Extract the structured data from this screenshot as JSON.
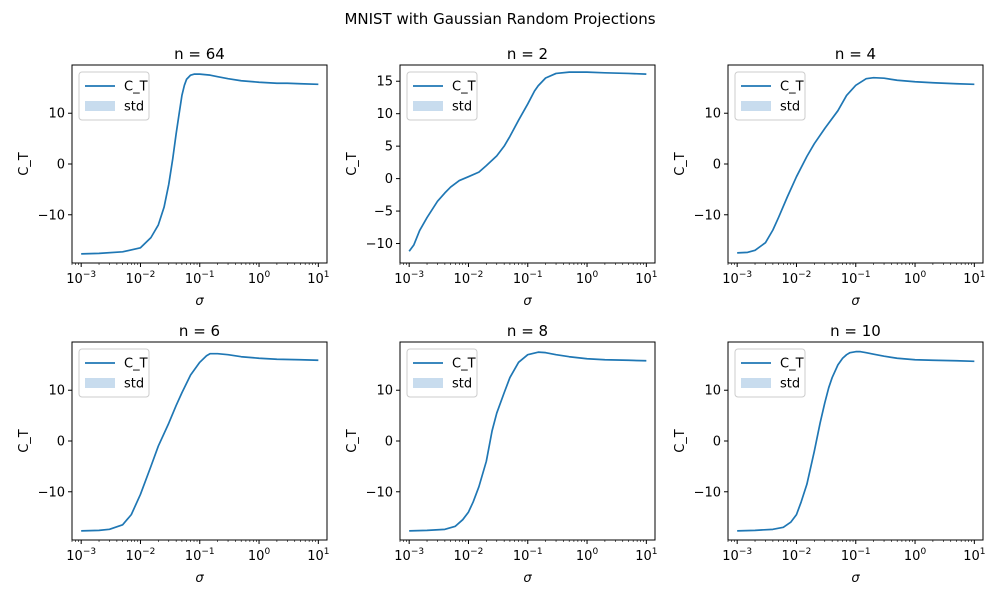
{
  "figure": {
    "suptitle": "MNIST with Gaussian Random Projections"
  },
  "colors": {
    "line": "#1f77b4",
    "std_fill": "#c8dcee"
  },
  "chart_data": [
    {
      "type": "line",
      "title": "n = 64",
      "xlabel": "σ",
      "ylabel": "C_T",
      "xscale": "log",
      "xlim": [
        0.0007,
        14
      ],
      "ylim": [
        -19.5,
        19.5
      ],
      "xticks": [
        {
          "value": 0.001,
          "label": "10",
          "exp": "−3"
        },
        {
          "value": 0.01,
          "label": "10",
          "exp": "−2"
        },
        {
          "value": 0.1,
          "label": "10",
          "exp": "−1"
        },
        {
          "value": 1,
          "label": "10",
          "exp": "0"
        },
        {
          "value": 10,
          "label": "10",
          "exp": "1"
        }
      ],
      "yticks": [
        {
          "value": -10,
          "label": "−10"
        },
        {
          "value": 0,
          "label": "0"
        },
        {
          "value": 10,
          "label": "10"
        }
      ],
      "legend": {
        "position": "upper-left",
        "entries": [
          "C_T",
          "std"
        ]
      },
      "series": [
        {
          "name": "C_T",
          "x": [
            0.001,
            0.002,
            0.005,
            0.01,
            0.015,
            0.02,
            0.025,
            0.03,
            0.035,
            0.04,
            0.045,
            0.05,
            0.055,
            0.06,
            0.07,
            0.08,
            0.1,
            0.15,
            0.2,
            0.3,
            0.5,
            1,
            2,
            3,
            5,
            10
          ],
          "y": [
            -17.7,
            -17.6,
            -17.3,
            -16.5,
            -14.5,
            -12.0,
            -8.5,
            -4.0,
            1.0,
            6.0,
            10.0,
            13.5,
            15.5,
            16.7,
            17.5,
            17.7,
            17.7,
            17.5,
            17.2,
            16.8,
            16.4,
            16.1,
            15.9,
            15.9,
            15.8,
            15.7
          ]
        }
      ]
    },
    {
      "type": "line",
      "title": "n = 2",
      "xlabel": "σ",
      "ylabel": "C_T",
      "xscale": "log",
      "xlim": [
        0.0007,
        14
      ],
      "ylim": [
        -13.0,
        17.5
      ],
      "xticks": [
        {
          "value": 0.001,
          "label": "10",
          "exp": "−3"
        },
        {
          "value": 0.01,
          "label": "10",
          "exp": "−2"
        },
        {
          "value": 0.1,
          "label": "10",
          "exp": "−1"
        },
        {
          "value": 1,
          "label": "10",
          "exp": "0"
        },
        {
          "value": 10,
          "label": "10",
          "exp": "1"
        }
      ],
      "yticks": [
        {
          "value": -10,
          "label": "−10"
        },
        {
          "value": -5,
          "label": "−5"
        },
        {
          "value": 0,
          "label": "0"
        },
        {
          "value": 5,
          "label": "5"
        },
        {
          "value": 10,
          "label": "10"
        },
        {
          "value": 15,
          "label": "15"
        }
      ],
      "legend": {
        "position": "upper-left",
        "entries": [
          "C_T",
          "std"
        ]
      },
      "series": [
        {
          "name": "C_T",
          "x": [
            0.001,
            0.0012,
            0.0015,
            0.002,
            0.003,
            0.004,
            0.005,
            0.007,
            0.01,
            0.015,
            0.02,
            0.03,
            0.04,
            0.05,
            0.07,
            0.1,
            0.13,
            0.15,
            0.2,
            0.3,
            0.5,
            0.7,
            1,
            2,
            5,
            10
          ],
          "y": [
            -11.2,
            -10.2,
            -8.0,
            -6.0,
            -3.5,
            -2.2,
            -1.3,
            -0.3,
            0.3,
            1.0,
            2.0,
            3.5,
            5.0,
            6.5,
            9.0,
            11.5,
            13.5,
            14.3,
            15.5,
            16.2,
            16.4,
            16.4,
            16.4,
            16.3,
            16.2,
            16.1
          ]
        }
      ]
    },
    {
      "type": "line",
      "title": "n = 4",
      "xlabel": "σ",
      "ylabel": "C_T",
      "xscale": "log",
      "xlim": [
        0.0007,
        14
      ],
      "ylim": [
        -19.5,
        19.5
      ],
      "xticks": [
        {
          "value": 0.001,
          "label": "10",
          "exp": "−3"
        },
        {
          "value": 0.01,
          "label": "10",
          "exp": "−2"
        },
        {
          "value": 0.1,
          "label": "10",
          "exp": "−1"
        },
        {
          "value": 1,
          "label": "10",
          "exp": "0"
        },
        {
          "value": 10,
          "label": "10",
          "exp": "1"
        }
      ],
      "yticks": [
        {
          "value": -10,
          "label": "−10"
        },
        {
          "value": 0,
          "label": "0"
        },
        {
          "value": 10,
          "label": "10"
        }
      ],
      "legend": {
        "position": "upper-left",
        "entries": [
          "C_T",
          "std"
        ]
      },
      "series": [
        {
          "name": "C_T",
          "x": [
            0.001,
            0.0015,
            0.002,
            0.003,
            0.004,
            0.005,
            0.007,
            0.01,
            0.015,
            0.02,
            0.03,
            0.05,
            0.07,
            0.1,
            0.15,
            0.2,
            0.3,
            0.5,
            1,
            2,
            5,
            10
          ],
          "y": [
            -17.5,
            -17.4,
            -17.0,
            -15.5,
            -13.0,
            -10.5,
            -6.5,
            -2.5,
            1.5,
            4.0,
            7.0,
            10.5,
            13.5,
            15.5,
            16.8,
            17.0,
            16.9,
            16.5,
            16.2,
            16.0,
            15.8,
            15.7
          ]
        }
      ]
    },
    {
      "type": "line",
      "title": "n = 6",
      "xlabel": "σ",
      "ylabel": "C_T",
      "xscale": "log",
      "xlim": [
        0.0007,
        14
      ],
      "ylim": [
        -19.5,
        19.5
      ],
      "xticks": [
        {
          "value": 0.001,
          "label": "10",
          "exp": "−3"
        },
        {
          "value": 0.01,
          "label": "10",
          "exp": "−2"
        },
        {
          "value": 0.1,
          "label": "10",
          "exp": "−1"
        },
        {
          "value": 1,
          "label": "10",
          "exp": "0"
        },
        {
          "value": 10,
          "label": "10",
          "exp": "1"
        }
      ],
      "yticks": [
        {
          "value": -10,
          "label": "−10"
        },
        {
          "value": 0,
          "label": "0"
        },
        {
          "value": 10,
          "label": "10"
        }
      ],
      "legend": {
        "position": "upper-left",
        "entries": [
          "C_T",
          "std"
        ]
      },
      "series": [
        {
          "name": "C_T",
          "x": [
            0.001,
            0.002,
            0.003,
            0.005,
            0.007,
            0.01,
            0.015,
            0.02,
            0.03,
            0.04,
            0.05,
            0.07,
            0.1,
            0.13,
            0.15,
            0.2,
            0.3,
            0.5,
            1,
            2,
            5,
            10
          ],
          "y": [
            -17.7,
            -17.6,
            -17.4,
            -16.5,
            -14.5,
            -10.5,
            -5.0,
            -1.0,
            3.5,
            7.0,
            9.5,
            13.0,
            15.5,
            16.8,
            17.2,
            17.2,
            17.0,
            16.6,
            16.3,
            16.1,
            16.0,
            15.9
          ]
        }
      ]
    },
    {
      "type": "line",
      "title": "n = 8",
      "xlabel": "σ",
      "ylabel": "C_T",
      "xscale": "log",
      "xlim": [
        0.0007,
        14
      ],
      "ylim": [
        -19.5,
        19.5
      ],
      "xticks": [
        {
          "value": 0.001,
          "label": "10",
          "exp": "−3"
        },
        {
          "value": 0.01,
          "label": "10",
          "exp": "−2"
        },
        {
          "value": 0.1,
          "label": "10",
          "exp": "−1"
        },
        {
          "value": 1,
          "label": "10",
          "exp": "0"
        },
        {
          "value": 10,
          "label": "10",
          "exp": "1"
        }
      ],
      "yticks": [
        {
          "value": -10,
          "label": "−10"
        },
        {
          "value": 0,
          "label": "0"
        },
        {
          "value": 10,
          "label": "10"
        }
      ],
      "legend": {
        "position": "upper-left",
        "entries": [
          "C_T",
          "std"
        ]
      },
      "series": [
        {
          "name": "C_T",
          "x": [
            0.001,
            0.002,
            0.004,
            0.006,
            0.008,
            0.01,
            0.012,
            0.015,
            0.02,
            0.025,
            0.03,
            0.04,
            0.05,
            0.07,
            0.1,
            0.15,
            0.2,
            0.3,
            0.5,
            1,
            2,
            5,
            10
          ],
          "y": [
            -17.7,
            -17.6,
            -17.4,
            -16.8,
            -15.5,
            -14.0,
            -12.0,
            -9.0,
            -4.0,
            2.0,
            5.5,
            9.5,
            12.5,
            15.5,
            17.0,
            17.5,
            17.4,
            17.0,
            16.6,
            16.2,
            16.0,
            15.9,
            15.8
          ]
        }
      ]
    },
    {
      "type": "line",
      "title": "n = 10",
      "xlabel": "σ",
      "ylabel": "C_T",
      "xscale": "log",
      "xlim": [
        0.0007,
        14
      ],
      "ylim": [
        -19.5,
        19.5
      ],
      "xticks": [
        {
          "value": 0.001,
          "label": "10",
          "exp": "−3"
        },
        {
          "value": 0.01,
          "label": "10",
          "exp": "−2"
        },
        {
          "value": 0.1,
          "label": "10",
          "exp": "−1"
        },
        {
          "value": 1,
          "label": "10",
          "exp": "0"
        },
        {
          "value": 10,
          "label": "10",
          "exp": "1"
        }
      ],
      "yticks": [
        {
          "value": -10,
          "label": "−10"
        },
        {
          "value": 0,
          "label": "0"
        },
        {
          "value": 10,
          "label": "10"
        }
      ],
      "legend": {
        "position": "upper-left",
        "entries": [
          "C_T",
          "std"
        ]
      },
      "series": [
        {
          "name": "C_T",
          "x": [
            0.001,
            0.002,
            0.004,
            0.006,
            0.008,
            0.01,
            0.012,
            0.015,
            0.02,
            0.025,
            0.03,
            0.035,
            0.04,
            0.05,
            0.06,
            0.07,
            0.08,
            0.1,
            0.12,
            0.15,
            0.2,
            0.3,
            0.5,
            1,
            2,
            5,
            10
          ],
          "y": [
            -17.7,
            -17.6,
            -17.4,
            -17.0,
            -16.0,
            -14.5,
            -12.0,
            -8.5,
            -2.0,
            3.5,
            7.5,
            10.5,
            12.5,
            15.0,
            16.3,
            17.0,
            17.4,
            17.6,
            17.6,
            17.4,
            17.1,
            16.7,
            16.3,
            16.0,
            15.9,
            15.8,
            15.7
          ]
        }
      ]
    }
  ]
}
